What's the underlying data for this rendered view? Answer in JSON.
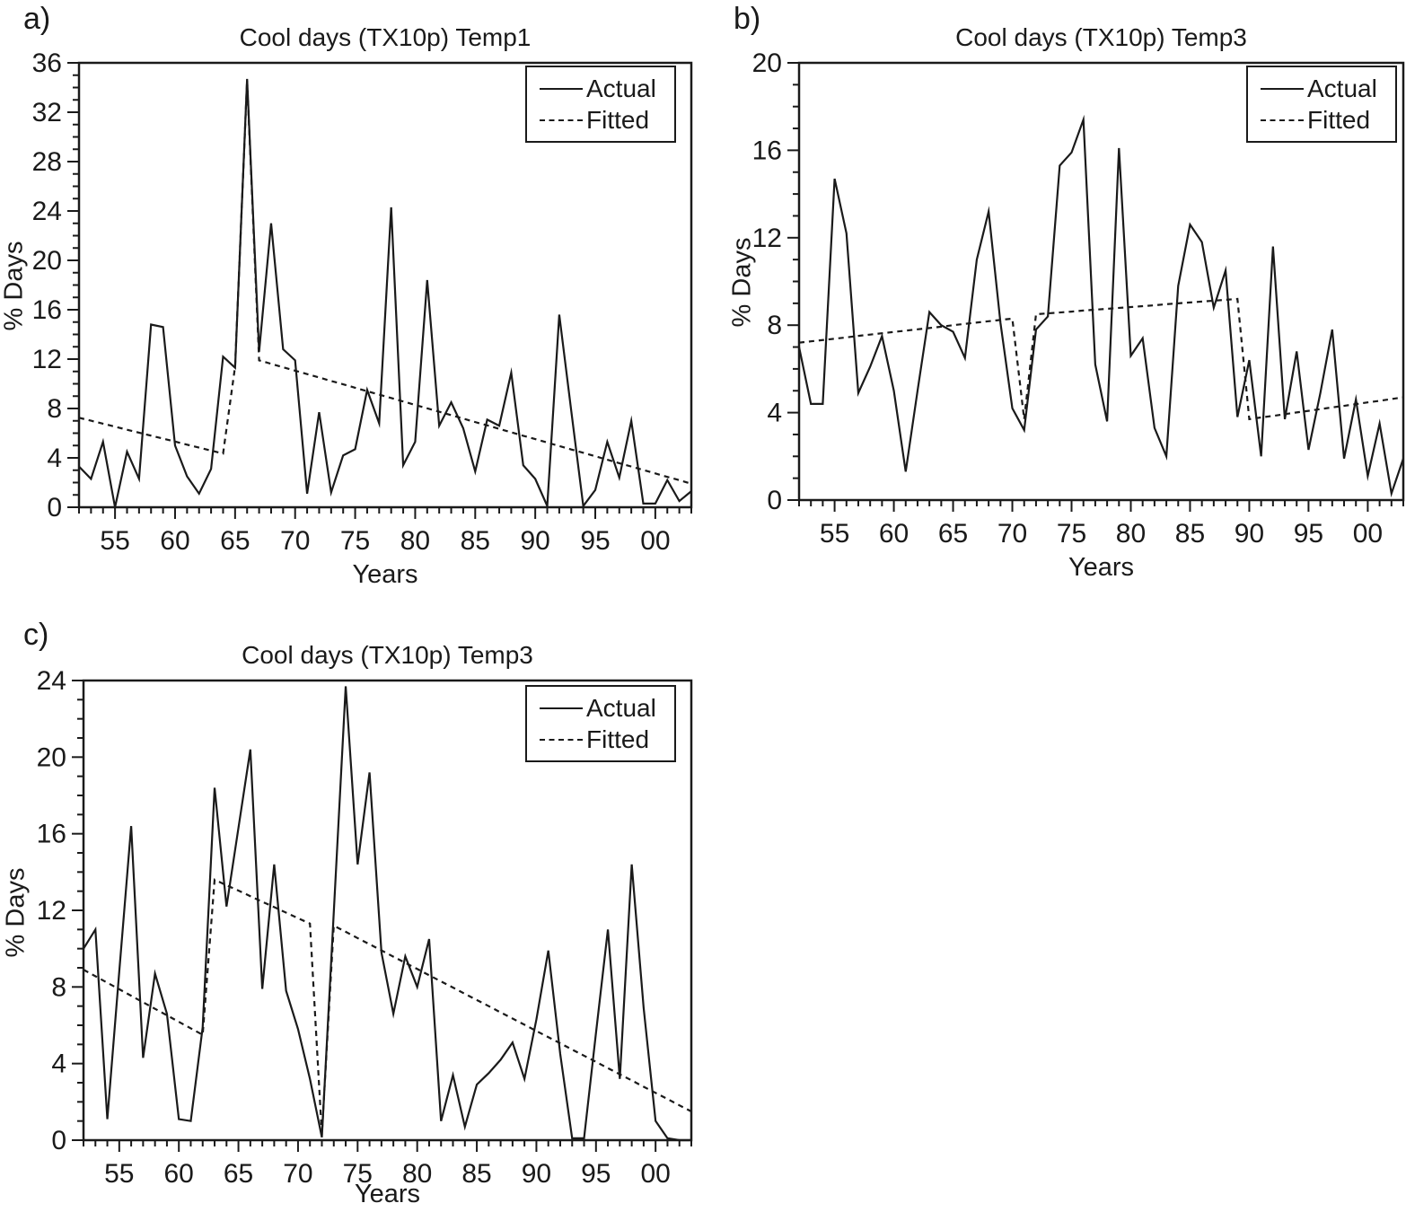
{
  "legend": {
    "actual_label": "Actual",
    "fitted_label": "Fitted"
  },
  "line_color": "#1a1a1a",
  "chart_data": [
    {
      "type": "line",
      "panel": "a)",
      "title": "Cool days (TX10p) Temp1",
      "xlabel": "Years",
      "ylabel": "% Days",
      "x_start": 1952,
      "x_end": 2003,
      "ylim": [
        0,
        36
      ],
      "ytick_step": 4,
      "grid": false,
      "legend_position": "top-right",
      "xticks": [
        {
          "year": 1955,
          "label": "55"
        },
        {
          "year": 1960,
          "label": "60"
        },
        {
          "year": 1965,
          "label": "65"
        },
        {
          "year": 1970,
          "label": "70"
        },
        {
          "year": 1975,
          "label": "75"
        },
        {
          "year": 1980,
          "label": "80"
        },
        {
          "year": 1985,
          "label": "85"
        },
        {
          "year": 1990,
          "label": "90"
        },
        {
          "year": 1995,
          "label": "95"
        },
        {
          "year": 2000,
          "label": "00"
        }
      ],
      "series": [
        {
          "name": "Actual",
          "style": "solid",
          "values": [
            3.3,
            2.3,
            5.3,
            0.0,
            4.5,
            2.3,
            14.8,
            14.6,
            5.0,
            2.5,
            1.1,
            3.1,
            12.2,
            11.3,
            34.7,
            12.6,
            23.0,
            12.8,
            11.9,
            1.1,
            7.7,
            1.2,
            4.2,
            4.7,
            9.5,
            6.8,
            24.3,
            3.4,
            5.3,
            18.4,
            6.6,
            8.5,
            6.4,
            2.9,
            7.1,
            6.6,
            10.9,
            3.4,
            2.3,
            0.1,
            15.6,
            7.8,
            0.1,
            1.4,
            5.3,
            2.4,
            7.0,
            0.3,
            0.3,
            2.2,
            0.5,
            1.3
          ]
        },
        {
          "name": "Fitted",
          "style": "dashed",
          "values": [
            7.25,
            7.01,
            6.77,
            6.53,
            6.28,
            6.04,
            5.8,
            5.56,
            5.32,
            5.07,
            4.83,
            4.59,
            4.35,
            11.4,
            34.6,
            11.9,
            11.62,
            11.34,
            11.06,
            10.79,
            10.51,
            10.23,
            9.96,
            9.68,
            9.4,
            9.12,
            8.85,
            8.57,
            8.29,
            8.01,
            7.74,
            7.46,
            7.18,
            6.9,
            6.63,
            6.35,
            6.07,
            5.79,
            5.52,
            5.24,
            4.96,
            4.68,
            4.41,
            4.13,
            3.85,
            3.57,
            3.3,
            3.02,
            2.74,
            2.46,
            2.19,
            1.91
          ]
        }
      ]
    },
    {
      "type": "line",
      "panel": "b)",
      "title": "Cool days (TX10p) Temp3",
      "xlabel": "Years",
      "ylabel": "% Days",
      "x_start": 1952,
      "x_end": 2003,
      "ylim": [
        0,
        20
      ],
      "ytick_step": 4,
      "grid": false,
      "legend_position": "top-right",
      "xticks": [
        {
          "year": 1955,
          "label": "55"
        },
        {
          "year": 1960,
          "label": "60"
        },
        {
          "year": 1965,
          "label": "65"
        },
        {
          "year": 1970,
          "label": "70"
        },
        {
          "year": 1975,
          "label": "75"
        },
        {
          "year": 1980,
          "label": "80"
        },
        {
          "year": 1985,
          "label": "85"
        },
        {
          "year": 1990,
          "label": "90"
        },
        {
          "year": 1995,
          "label": "95"
        },
        {
          "year": 2000,
          "label": "00"
        }
      ],
      "series": [
        {
          "name": "Actual",
          "style": "solid",
          "values": [
            7.0,
            4.4,
            4.4,
            14.7,
            12.2,
            4.9,
            6.1,
            7.5,
            5.0,
            1.3,
            5.0,
            8.6,
            8.0,
            7.7,
            6.5,
            11.0,
            13.2,
            8.1,
            4.2,
            3.2,
            7.8,
            8.4,
            15.3,
            15.9,
            17.4,
            6.2,
            3.6,
            16.1,
            6.6,
            7.4,
            3.3,
            2.0,
            9.8,
            12.6,
            11.8,
            8.8,
            10.5,
            3.8,
            6.4,
            2.0,
            11.6,
            3.7,
            6.8,
            2.3,
            4.9,
            7.8,
            1.9,
            4.6,
            1.1,
            3.5,
            0.3,
            1.9
          ]
        },
        {
          "name": "Fitted",
          "style": "dashed",
          "values": [
            7.2,
            7.26,
            7.32,
            7.38,
            7.44,
            7.51,
            7.57,
            7.63,
            7.69,
            7.75,
            7.81,
            7.87,
            7.93,
            8.0,
            8.06,
            8.12,
            8.18,
            8.24,
            8.3,
            3.7,
            8.5,
            8.54,
            8.58,
            8.62,
            8.67,
            8.71,
            8.75,
            8.79,
            8.83,
            8.87,
            8.91,
            8.96,
            9.0,
            9.04,
            9.08,
            9.12,
            9.16,
            9.2,
            3.7,
            3.78,
            3.85,
            3.93,
            4.01,
            4.08,
            4.16,
            4.24,
            4.31,
            4.39,
            4.47,
            4.54,
            4.62,
            4.7
          ]
        }
      ]
    },
    {
      "type": "line",
      "panel": "c)",
      "title": "Cool days (TX10p) Temp3",
      "xlabel": "Years",
      "ylabel": "% Days",
      "x_start": 1952,
      "x_end": 2003,
      "ylim": [
        0,
        24
      ],
      "ytick_step": 4,
      "grid": false,
      "legend_position": "top-right",
      "xticks": [
        {
          "year": 1955,
          "label": "55"
        },
        {
          "year": 1960,
          "label": "60"
        },
        {
          "year": 1965,
          "label": "65"
        },
        {
          "year": 1970,
          "label": "70"
        },
        {
          "year": 1975,
          "label": "75"
        },
        {
          "year": 1980,
          "label": "80"
        },
        {
          "year": 1985,
          "label": "85"
        },
        {
          "year": 1990,
          "label": "90"
        },
        {
          "year": 1995,
          "label": "95"
        },
        {
          "year": 2000,
          "label": "00"
        }
      ],
      "series": [
        {
          "name": "Actual",
          "style": "solid",
          "values": [
            10.0,
            11.0,
            1.1,
            8.8,
            16.4,
            4.3,
            8.7,
            6.6,
            1.1,
            1.0,
            5.9,
            18.4,
            12.2,
            16.3,
            20.4,
            7.9,
            14.4,
            7.8,
            5.8,
            3.2,
            0.15,
            11.9,
            23.7,
            14.4,
            19.2,
            9.8,
            6.6,
            9.6,
            8.0,
            10.5,
            1.0,
            3.4,
            0.7,
            2.9,
            3.5,
            4.2,
            5.1,
            3.2,
            6.3,
            9.9,
            4.5,
            0.1,
            0.1,
            5.6,
            11.0,
            3.2,
            14.4,
            6.9,
            1.0,
            0.1,
            0.0,
            0.0
          ]
        },
        {
          "name": "Fitted",
          "style": "dashed",
          "values": [
            8.9,
            8.56,
            8.22,
            7.88,
            7.54,
            7.2,
            6.86,
            6.52,
            6.18,
            5.84,
            5.5,
            13.6,
            13.31,
            13.03,
            12.74,
            12.45,
            12.17,
            11.88,
            11.59,
            11.31,
            0.3,
            11.2,
            10.88,
            10.55,
            10.23,
            9.91,
            9.58,
            9.26,
            8.94,
            8.61,
            8.29,
            7.97,
            7.64,
            7.32,
            7.0,
            6.67,
            6.35,
            6.03,
            5.7,
            5.38,
            5.06,
            4.73,
            4.41,
            4.09,
            3.76,
            3.44,
            3.12,
            2.79,
            2.47,
            2.15,
            1.82,
            1.5
          ]
        }
      ]
    }
  ]
}
